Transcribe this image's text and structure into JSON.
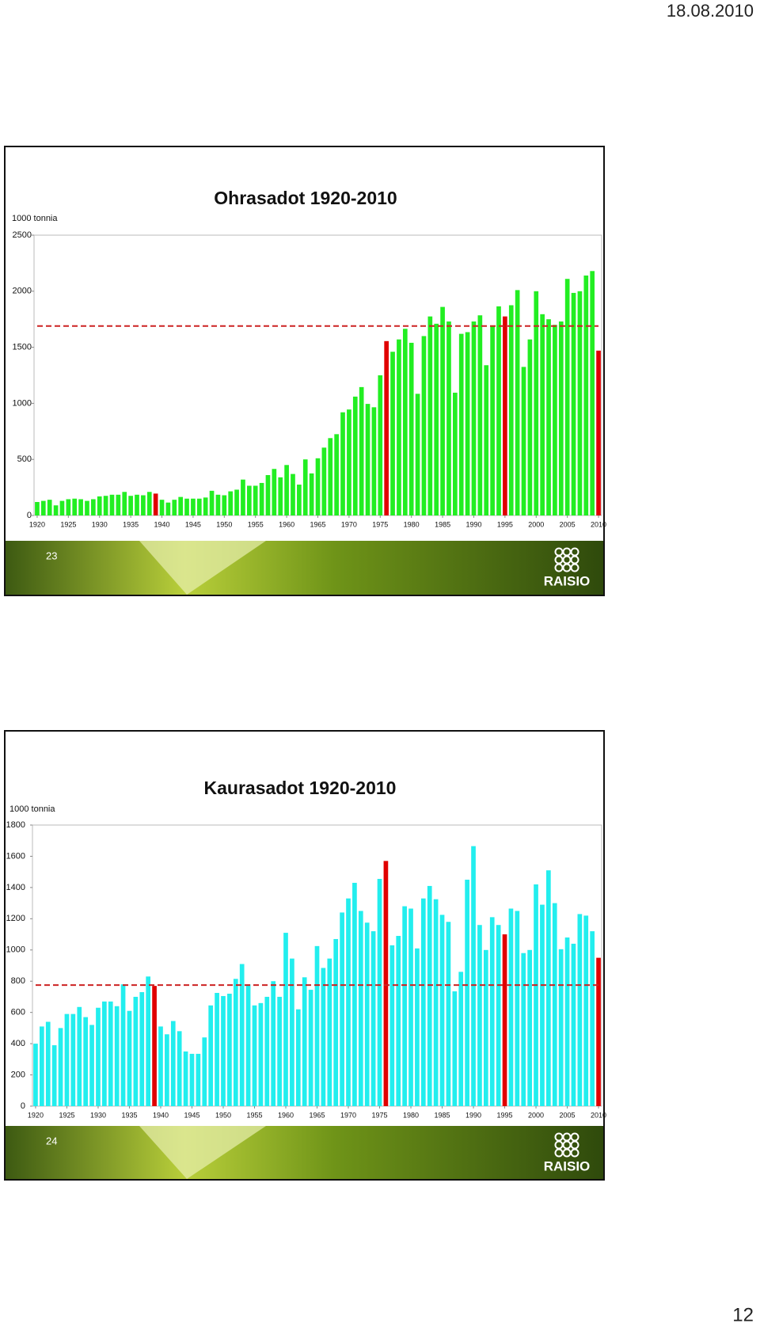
{
  "header": {
    "date": "18.08.2010"
  },
  "footer": {
    "page": "12"
  },
  "slides": [
    {
      "number": "23",
      "logo": "RAISIO"
    },
    {
      "number": "24",
      "logo": "RAISIO"
    }
  ],
  "chart_data": [
    {
      "type": "bar",
      "title": "Ohrasadot 1920-2010",
      "y_label": "1000 tonnia",
      "x": [
        1920,
        1921,
        1922,
        1923,
        1924,
        1925,
        1926,
        1927,
        1928,
        1929,
        1930,
        1931,
        1932,
        1933,
        1934,
        1935,
        1936,
        1937,
        1938,
        1939,
        1940,
        1941,
        1942,
        1943,
        1944,
        1945,
        1946,
        1947,
        1948,
        1949,
        1950,
        1951,
        1952,
        1953,
        1954,
        1955,
        1956,
        1957,
        1958,
        1959,
        1960,
        1961,
        1962,
        1963,
        1964,
        1965,
        1966,
        1967,
        1968,
        1969,
        1970,
        1971,
        1972,
        1973,
        1974,
        1975,
        1976,
        1977,
        1978,
        1979,
        1980,
        1981,
        1982,
        1983,
        1984,
        1985,
        1986,
        1987,
        1988,
        1989,
        1990,
        1991,
        1992,
        1993,
        1994,
        1995,
        1996,
        1997,
        1998,
        1999,
        2000,
        2001,
        2002,
        2003,
        2004,
        2005,
        2006,
        2007,
        2008,
        2009,
        2010
      ],
      "series": [
        {
          "color": "#22ee22",
          "values": [
            120,
            130,
            140,
            90,
            130,
            145,
            150,
            145,
            130,
            145,
            170,
            175,
            185,
            185,
            210,
            175,
            185,
            180,
            210,
            195,
            140,
            115,
            140,
            165,
            150,
            150,
            150,
            160,
            220,
            185,
            180,
            215,
            230,
            320,
            265,
            265,
            290,
            360,
            415,
            340,
            450,
            370,
            275,
            500,
            375,
            510,
            605,
            690,
            725,
            920,
            945,
            1060,
            1145,
            995,
            965,
            1250,
            1555,
            1460,
            1570,
            1665,
            1540,
            1085,
            1600,
            1775,
            1710,
            1860,
            1730,
            1095,
            1620,
            1635,
            1730,
            1785,
            1340,
            1690,
            1865,
            1775,
            1875,
            2010,
            1325,
            1570,
            2000,
            1795,
            1750,
            1700,
            1730,
            2110,
            1985,
            2000,
            2140,
            2180,
            1470
          ]
        }
      ],
      "highlight": {
        "color": "#e00000",
        "x": [
          1939,
          1976,
          1995,
          2010
        ]
      },
      "reference_line": {
        "value": 1690,
        "color": "#cc2222",
        "style": "dashed"
      },
      "xlim": [
        1919.5,
        2010.5
      ],
      "xticks": [
        1920,
        1925,
        1930,
        1935,
        1940,
        1945,
        1950,
        1955,
        1960,
        1965,
        1970,
        1975,
        1980,
        1985,
        1990,
        1995,
        2000,
        2005,
        2010
      ],
      "ylim": [
        0,
        2500
      ],
      "yticks": [
        0,
        500,
        1000,
        1500,
        2000,
        2500
      ]
    },
    {
      "type": "bar",
      "title": "Kaurasadot 1920-2010",
      "y_label": "1000 tonnia",
      "x": [
        1920,
        1921,
        1922,
        1923,
        1924,
        1925,
        1926,
        1927,
        1928,
        1929,
        1930,
        1931,
        1932,
        1933,
        1934,
        1935,
        1936,
        1937,
        1938,
        1939,
        1940,
        1941,
        1942,
        1943,
        1944,
        1945,
        1946,
        1947,
        1948,
        1949,
        1950,
        1951,
        1952,
        1953,
        1954,
        1955,
        1956,
        1957,
        1958,
        1959,
        1960,
        1961,
        1962,
        1963,
        1964,
        1965,
        1966,
        1967,
        1968,
        1969,
        1970,
        1971,
        1972,
        1973,
        1974,
        1975,
        1976,
        1977,
        1978,
        1979,
        1980,
        1981,
        1982,
        1983,
        1984,
        1985,
        1986,
        1987,
        1988,
        1989,
        1990,
        1991,
        1992,
        1993,
        1994,
        1995,
        1996,
        1997,
        1998,
        1999,
        2000,
        2001,
        2002,
        2003,
        2004,
        2005,
        2006,
        2007,
        2008,
        2009,
        2010
      ],
      "series": [
        {
          "color": "#22eeee",
          "values": [
            400,
            510,
            540,
            390,
            500,
            590,
            590,
            635,
            570,
            520,
            630,
            670,
            670,
            640,
            780,
            610,
            700,
            730,
            830,
            770,
            510,
            460,
            545,
            480,
            350,
            335,
            335,
            440,
            645,
            725,
            705,
            720,
            815,
            910,
            780,
            645,
            660,
            700,
            800,
            700,
            1110,
            945,
            620,
            825,
            745,
            1025,
            885,
            945,
            1070,
            1240,
            1330,
            1430,
            1250,
            1175,
            1120,
            1455,
            1570,
            1030,
            1090,
            1280,
            1265,
            1010,
            1330,
            1410,
            1325,
            1225,
            1180,
            735,
            860,
            1450,
            1665,
            1160,
            1000,
            1210,
            1160,
            1100,
            1265,
            1250,
            980,
            1000,
            1420,
            1290,
            1510,
            1300,
            1005,
            1080,
            1040,
            1230,
            1220,
            1120,
            950
          ]
        }
      ],
      "highlight": {
        "color": "#e00000",
        "x": [
          1939,
          1976,
          1995,
          2010
        ]
      },
      "reference_line": {
        "value": 775,
        "color": "#cc2222",
        "style": "dashed"
      },
      "xlim": [
        1919.5,
        2010.5
      ],
      "xticks": [
        1920,
        1925,
        1930,
        1935,
        1940,
        1945,
        1950,
        1955,
        1960,
        1965,
        1970,
        1975,
        1980,
        1985,
        1990,
        1995,
        2000,
        2005,
        2010
      ],
      "ylim": [
        0,
        1800
      ],
      "yticks": [
        0,
        200,
        400,
        600,
        800,
        1000,
        1200,
        1400,
        1600,
        1800
      ]
    }
  ]
}
